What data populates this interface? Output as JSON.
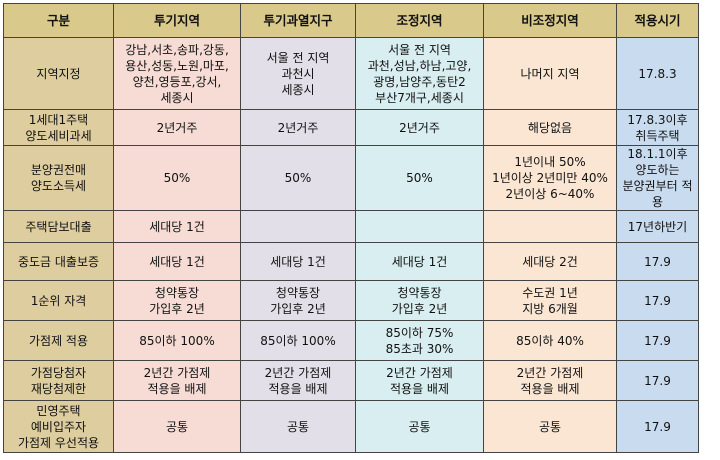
{
  "header": [
    "구분",
    "투기지역",
    "투기과열지구",
    "조정지역",
    "비조정지역",
    "적용시기"
  ],
  "rows": [
    {
      "label": "지역지정",
      "cells": [
        "강남,서초,송파,강동,\n용산,성동,노원,마포,\n양천,영등포,강서,\n세종시",
        "서울 전 지역\n과천시\n세종시",
        "서울 전 지역\n과천,성남,하남,고양,\n광명,남양주,동탄2\n부산7개구,세종시",
        "나머지 지역",
        "17.8.3"
      ]
    },
    {
      "label": "1세대1주택\n양도세비과세",
      "cells": [
        "2년거주",
        "2년거주",
        "2년거주",
        "해당없음",
        "17.8.3이후\n취득주택"
      ]
    },
    {
      "label": "분양권전매\n양도소득세",
      "cells": [
        "50%",
        "50%",
        "50%",
        "1년이내 50%\n1년이상 2년미만 40%\n2년이상 6~40%",
        "18.1.1이후\n양도하는\n분양권부터 적용"
      ]
    },
    {
      "label": "주택담보대출",
      "cells": [
        "세대당 1건",
        "",
        "",
        "",
        "17년하반기"
      ]
    },
    {
      "label": "중도금 대출보증",
      "cells": [
        "세대당 1건",
        "세대당 1건",
        "세대당 1건",
        "세대당 2건",
        "17.9"
      ]
    },
    {
      "label": "1순위 자격",
      "cells": [
        "청약통장\n가입후 2년",
        "청약통장\n가입후 2년",
        "청약통장\n가입후 2년",
        "수도권 1년\n지방 6개월",
        "17.9"
      ]
    },
    {
      "label": "가점제 적용",
      "cells": [
        "85이하 100%",
        "85이하 100%",
        "85이하 75%\n85초과 30%",
        "85이하 40%",
        "17.9"
      ]
    },
    {
      "label": "가점당첨자\n재당첨제한",
      "cells": [
        "2년간 가점제\n적용을 배제",
        "2년간 가점제\n적용을 배제",
        "2년간 가점제\n적용을 배제",
        "2년간 가점제\n적용을 배제",
        "17.9"
      ]
    },
    {
      "label": "민영주택\n예비입주자\n가점제 우선적용",
      "cells": [
        "공통",
        "공통",
        "공통",
        "공통",
        "17.9"
      ]
    }
  ]
}
